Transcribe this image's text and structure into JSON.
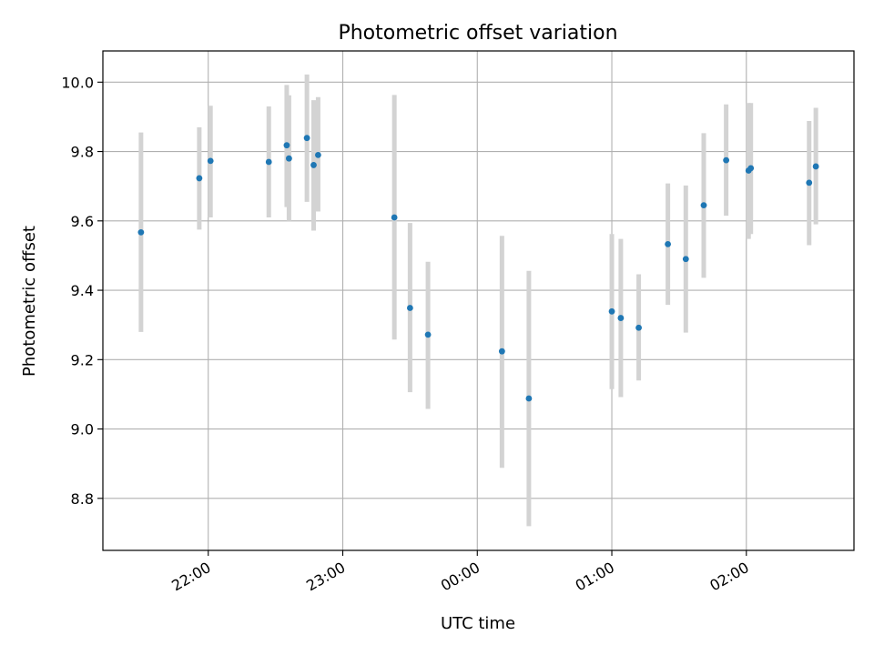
{
  "chart_data": {
    "type": "scatter",
    "title": "Photometric offset variation",
    "xlabel": "UTC time",
    "ylabel": "Photometric offset",
    "xlim": [
      "21:13",
      "02:48"
    ],
    "ylim": [
      8.65,
      10.09
    ],
    "x_ticks": [
      "22:00",
      "23:00",
      "00:00",
      "01:00",
      "02:00"
    ],
    "y_ticks": [
      8.8,
      9.0,
      9.2,
      9.4,
      9.6,
      9.8,
      10.0
    ],
    "y_tick_labels": [
      "8.8",
      "9.0",
      "9.2",
      "9.4",
      "9.6",
      "9.8",
      "10.0"
    ],
    "grid": true,
    "colors": {
      "points": "#1f77b4",
      "error_bars": "#d3d3d3"
    },
    "points": [
      {
        "t": "21:30",
        "y": 9.567,
        "ylo": 9.28,
        "yhi": 9.855
      },
      {
        "t": "21:56",
        "y": 9.723,
        "ylo": 9.575,
        "yhi": 9.87
      },
      {
        "t": "22:01",
        "y": 9.773,
        "ylo": 9.61,
        "yhi": 9.932
      },
      {
        "t": "22:27",
        "y": 9.77,
        "ylo": 9.61,
        "yhi": 9.93
      },
      {
        "t": "22:35",
        "y": 9.818,
        "ylo": 9.64,
        "yhi": 9.992
      },
      {
        "t": "22:36",
        "y": 9.78,
        "ylo": 9.6,
        "yhi": 9.962
      },
      {
        "t": "22:44",
        "y": 9.839,
        "ylo": 9.655,
        "yhi": 10.022
      },
      {
        "t": "22:47",
        "y": 9.761,
        "ylo": 9.572,
        "yhi": 9.948
      },
      {
        "t": "22:49",
        "y": 9.79,
        "ylo": 9.627,
        "yhi": 9.957
      },
      {
        "t": "23:23",
        "y": 9.61,
        "ylo": 9.258,
        "yhi": 9.963
      },
      {
        "t": "23:30",
        "y": 9.349,
        "ylo": 9.106,
        "yhi": 9.594
      },
      {
        "t": "23:38",
        "y": 9.272,
        "ylo": 9.058,
        "yhi": 9.482
      },
      {
        "t": "00:11",
        "y": 9.224,
        "ylo": 8.888,
        "yhi": 9.557
      },
      {
        "t": "00:23",
        "y": 9.088,
        "ylo": 8.72,
        "yhi": 9.456
      },
      {
        "t": "01:00",
        "y": 9.339,
        "ylo": 9.115,
        "yhi": 9.562
      },
      {
        "t": "01:04",
        "y": 9.32,
        "ylo": 9.092,
        "yhi": 9.548
      },
      {
        "t": "01:12",
        "y": 9.292,
        "ylo": 9.14,
        "yhi": 9.446
      },
      {
        "t": "01:25",
        "y": 9.533,
        "ylo": 9.358,
        "yhi": 9.708
      },
      {
        "t": "01:33",
        "y": 9.49,
        "ylo": 9.278,
        "yhi": 9.702
      },
      {
        "t": "01:41",
        "y": 9.645,
        "ylo": 9.436,
        "yhi": 9.853
      },
      {
        "t": "01:51",
        "y": 9.775,
        "ylo": 9.615,
        "yhi": 9.936
      },
      {
        "t": "02:01",
        "y": 9.745,
        "ylo": 9.548,
        "yhi": 9.94
      },
      {
        "t": "02:02",
        "y": 9.752,
        "ylo": 9.562,
        "yhi": 9.94
      },
      {
        "t": "02:28",
        "y": 9.71,
        "ylo": 9.53,
        "yhi": 9.888
      },
      {
        "t": "02:31",
        "y": 9.757,
        "ylo": 9.59,
        "yhi": 9.926
      }
    ]
  }
}
